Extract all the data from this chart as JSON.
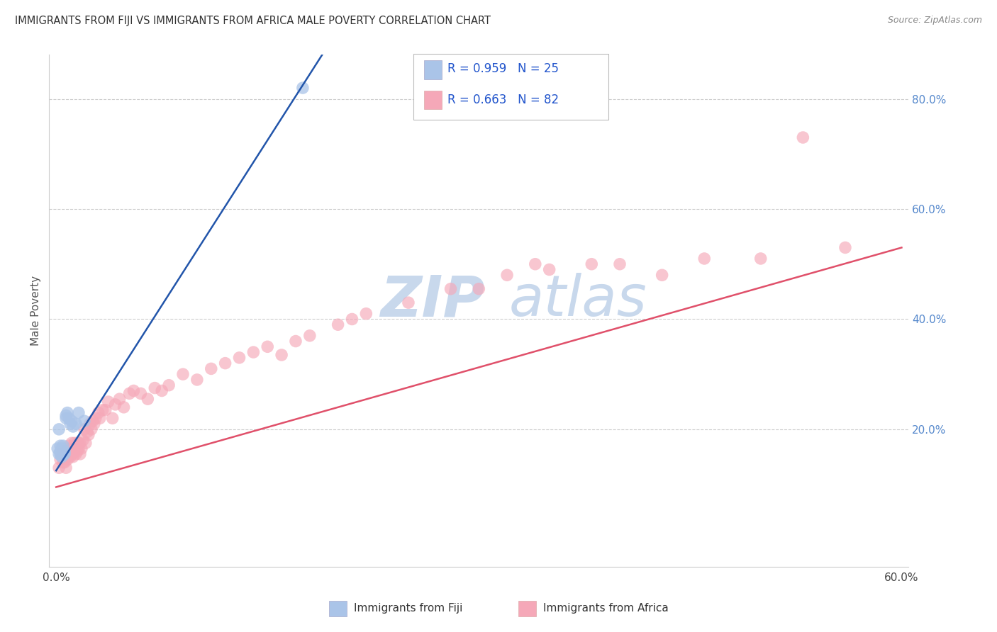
{
  "title": "IMMIGRANTS FROM FIJI VS IMMIGRANTS FROM AFRICA MALE POVERTY CORRELATION CHART",
  "source": "Source: ZipAtlas.com",
  "ylabel": "Male Poverty",
  "fiji_R": 0.959,
  "fiji_N": 25,
  "africa_R": 0.663,
  "africa_N": 82,
  "fiji_color": "#aac4e8",
  "africa_color": "#f5a8b8",
  "fiji_line_color": "#2255aa",
  "africa_line_color": "#e0506a",
  "legend_color": "#2255cc",
  "watermark_zip_color": "#c8d8ec",
  "watermark_atlas_color": "#c8d8ec",
  "xlim": [
    -0.005,
    0.605
  ],
  "ylim": [
    -0.05,
    0.88
  ],
  "right_ytick_vals": [
    0.2,
    0.4,
    0.6,
    0.8
  ],
  "right_ytick_labels": [
    "20.0%",
    "40.0%",
    "60.0%",
    "80.0%"
  ],
  "xtick_vals": [
    0.0,
    0.1,
    0.2,
    0.3,
    0.4,
    0.5,
    0.6
  ],
  "xtick_labels": [
    "0.0%",
    "",
    "",
    "",
    "",
    "",
    "60.0%"
  ],
  "fiji_scatter_x": [
    0.001,
    0.002,
    0.002,
    0.003,
    0.003,
    0.003,
    0.004,
    0.004,
    0.004,
    0.005,
    0.005,
    0.005,
    0.006,
    0.006,
    0.007,
    0.007,
    0.008,
    0.009,
    0.01,
    0.011,
    0.012,
    0.014,
    0.016,
    0.02,
    0.175
  ],
  "fiji_scatter_y": [
    0.165,
    0.155,
    0.2,
    0.155,
    0.16,
    0.17,
    0.15,
    0.16,
    0.165,
    0.155,
    0.16,
    0.17,
    0.155,
    0.16,
    0.22,
    0.225,
    0.23,
    0.22,
    0.21,
    0.215,
    0.205,
    0.21,
    0.23,
    0.215,
    0.82
  ],
  "africa_scatter_x": [
    0.002,
    0.003,
    0.004,
    0.005,
    0.005,
    0.006,
    0.006,
    0.007,
    0.007,
    0.008,
    0.008,
    0.009,
    0.009,
    0.01,
    0.01,
    0.011,
    0.011,
    0.012,
    0.012,
    0.013,
    0.013,
    0.014,
    0.014,
    0.015,
    0.015,
    0.016,
    0.016,
    0.017,
    0.017,
    0.018,
    0.019,
    0.02,
    0.021,
    0.022,
    0.023,
    0.024,
    0.025,
    0.026,
    0.027,
    0.028,
    0.03,
    0.031,
    0.033,
    0.035,
    0.037,
    0.04,
    0.042,
    0.045,
    0.048,
    0.052,
    0.055,
    0.06,
    0.065,
    0.07,
    0.075,
    0.08,
    0.09,
    0.1,
    0.11,
    0.12,
    0.13,
    0.14,
    0.15,
    0.16,
    0.17,
    0.18,
    0.2,
    0.21,
    0.22,
    0.25,
    0.28,
    0.3,
    0.32,
    0.34,
    0.35,
    0.38,
    0.4,
    0.43,
    0.46,
    0.5,
    0.53,
    0.56
  ],
  "africa_scatter_y": [
    0.13,
    0.145,
    0.155,
    0.14,
    0.16,
    0.14,
    0.155,
    0.13,
    0.15,
    0.145,
    0.155,
    0.16,
    0.17,
    0.15,
    0.165,
    0.155,
    0.175,
    0.15,
    0.165,
    0.16,
    0.175,
    0.155,
    0.17,
    0.16,
    0.175,
    0.165,
    0.175,
    0.155,
    0.175,
    0.165,
    0.18,
    0.2,
    0.175,
    0.195,
    0.19,
    0.21,
    0.2,
    0.215,
    0.21,
    0.22,
    0.23,
    0.22,
    0.235,
    0.235,
    0.25,
    0.22,
    0.245,
    0.255,
    0.24,
    0.265,
    0.27,
    0.265,
    0.255,
    0.275,
    0.27,
    0.28,
    0.3,
    0.29,
    0.31,
    0.32,
    0.33,
    0.34,
    0.35,
    0.335,
    0.36,
    0.37,
    0.39,
    0.4,
    0.41,
    0.43,
    0.455,
    0.455,
    0.48,
    0.5,
    0.49,
    0.5,
    0.5,
    0.48,
    0.51,
    0.51,
    0.73,
    0.53
  ],
  "africa_line_intercept": 0.095,
  "africa_line_slope": 0.725,
  "fiji_line_intercept": 0.125,
  "fiji_line_slope": 4.0
}
